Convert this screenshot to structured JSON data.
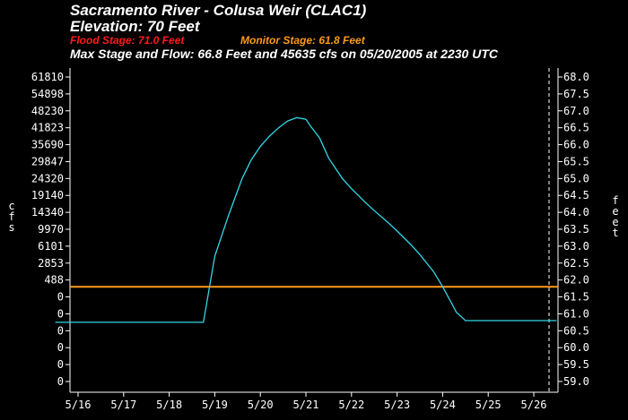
{
  "header": {
    "title": "Sacramento River - Colusa Weir (CLAC1)",
    "elevation": "Elevation: 70 Feet",
    "flood_stage": "Flood Stage: 71.0 Feet",
    "monitor_stage": "Monitor Stage: 61.8 Feet",
    "max_line": "Max Stage and Flow: 66.8 Feet and 45635 cfs on 05/20/2005 at 2230 UTC"
  },
  "colors": {
    "background": "#000000",
    "axes": "#ffffff",
    "series": "#33d6e6",
    "monitor_line": "#ff9a1a",
    "flood_text": "#ff1a1a"
  },
  "chart_data": {
    "type": "line",
    "ylabel_left": "cfs",
    "ylabel_right": "feet",
    "left_ticks": [
      "61810",
      "54898",
      "48230",
      "41823",
      "35690",
      "29847",
      "24320",
      "19140",
      "14340",
      "9970",
      "6101",
      "2853",
      "488",
      "0",
      "0",
      "0",
      "0",
      "0",
      "0"
    ],
    "right_ticks": [
      "68.0",
      "67.5",
      "67.0",
      "66.5",
      "66.0",
      "65.5",
      "65.0",
      "64.5",
      "64.0",
      "63.5",
      "63.0",
      "62.5",
      "62.0",
      "61.5",
      "61.0",
      "60.5",
      "60.0",
      "59.5",
      "59.0"
    ],
    "x_ticks": [
      "5/16",
      "5/17",
      "5/18",
      "5/19",
      "5/20",
      "5/21",
      "5/22",
      "5/23",
      "5/24",
      "5/25",
      "5/26"
    ],
    "ylim": [
      59.0,
      68.0
    ],
    "monitor_stage": 61.8,
    "series": [
      {
        "x": [
          15.5,
          16,
          17,
          18,
          18.4,
          18.75,
          18.82,
          19.0,
          19.3,
          19.6,
          19.8,
          20.0,
          20.2,
          20.4,
          20.6,
          20.8,
          21.0,
          21.1,
          21.3,
          21.5,
          21.8,
          22.0,
          22.3,
          22.5,
          22.8,
          23.0,
          23.3,
          23.5,
          23.8,
          24.0,
          24.2,
          24.3,
          24.5,
          25.0,
          25.5,
          26.0,
          26.5
        ],
        "y": [
          60.75,
          60.75,
          60.75,
          60.75,
          60.75,
          60.75,
          61.3,
          62.7,
          63.9,
          65.0,
          65.55,
          65.95,
          66.25,
          66.5,
          66.7,
          66.8,
          66.75,
          66.55,
          66.2,
          65.6,
          65.0,
          64.7,
          64.3,
          64.05,
          63.7,
          63.45,
          63.05,
          62.75,
          62.25,
          61.8,
          61.3,
          61.05,
          60.8,
          60.8,
          60.8,
          60.8,
          60.8
        ]
      }
    ]
  }
}
